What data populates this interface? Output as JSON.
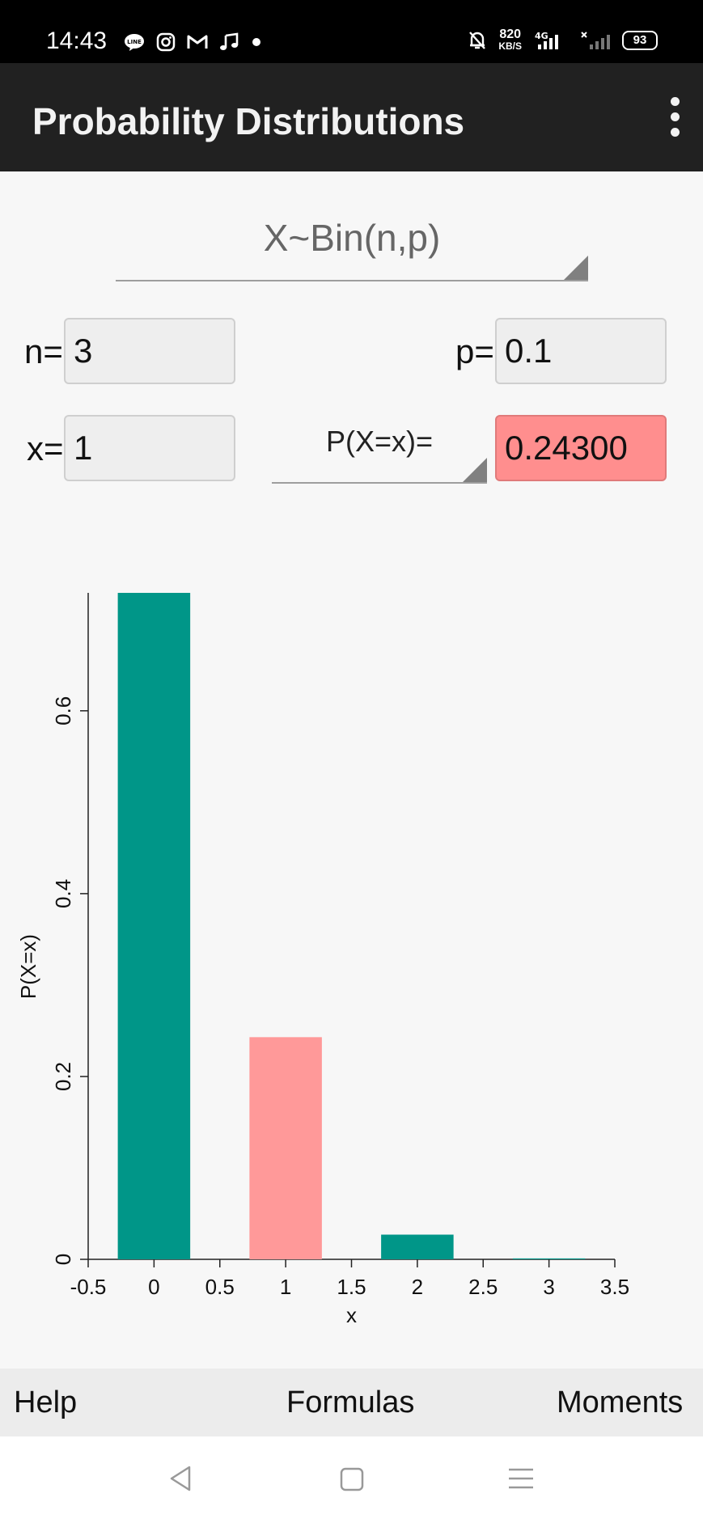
{
  "status_bar": {
    "time": "14:43",
    "icons": [
      "line-icon",
      "instagram-icon",
      "gmail-icon",
      "music-icon",
      "dot-icon"
    ],
    "net_speed_value": "820",
    "net_speed_unit": "KB/S",
    "network": "4G",
    "battery": "93"
  },
  "app_bar": {
    "title": "Probability Distributions",
    "menu_icon": "overflow-menu-icon"
  },
  "distribution": {
    "selected": "X~Bin(n,p)"
  },
  "params": {
    "n_label": "n=",
    "n_value": "3",
    "p_label": "p=",
    "p_value": "0.1",
    "x_label": "x=",
    "x_value": "1",
    "prob_type": "P(X=x)=",
    "result": "0.24300"
  },
  "chart_data": {
    "type": "bar",
    "x": [
      0,
      1,
      2,
      3
    ],
    "values": [
      0.729,
      0.243,
      0.027,
      0.001
    ],
    "highlight_x": 1,
    "colors": {
      "default": "#009688",
      "highlight": "#ff9999"
    },
    "xlabel": "x",
    "ylabel": "P(X=x)",
    "xlim": [
      -0.5,
      3.5
    ],
    "ylim": [
      0,
      0.729
    ],
    "xticks": [
      -0.5,
      0,
      0.5,
      1,
      1.5,
      2,
      2.5,
      3,
      3.5
    ],
    "xtick_labels": [
      "-0.5",
      "0",
      "0.5",
      "1",
      "1.5",
      "2",
      "2.5",
      "3",
      "3.5"
    ],
    "yticks": [
      0,
      0.2,
      0.4,
      0.6
    ],
    "ytick_labels": [
      "0",
      "0.2",
      "0.4",
      "0.6"
    ],
    "bar_width": 0.55,
    "grid": false
  },
  "bottom_bar": {
    "help": "Help",
    "formulas": "Formulas",
    "moments": "Moments"
  },
  "nav_bar": {
    "back_icon": "back-icon",
    "home_icon": "home-icon",
    "menu_icon": "menu-icon"
  }
}
